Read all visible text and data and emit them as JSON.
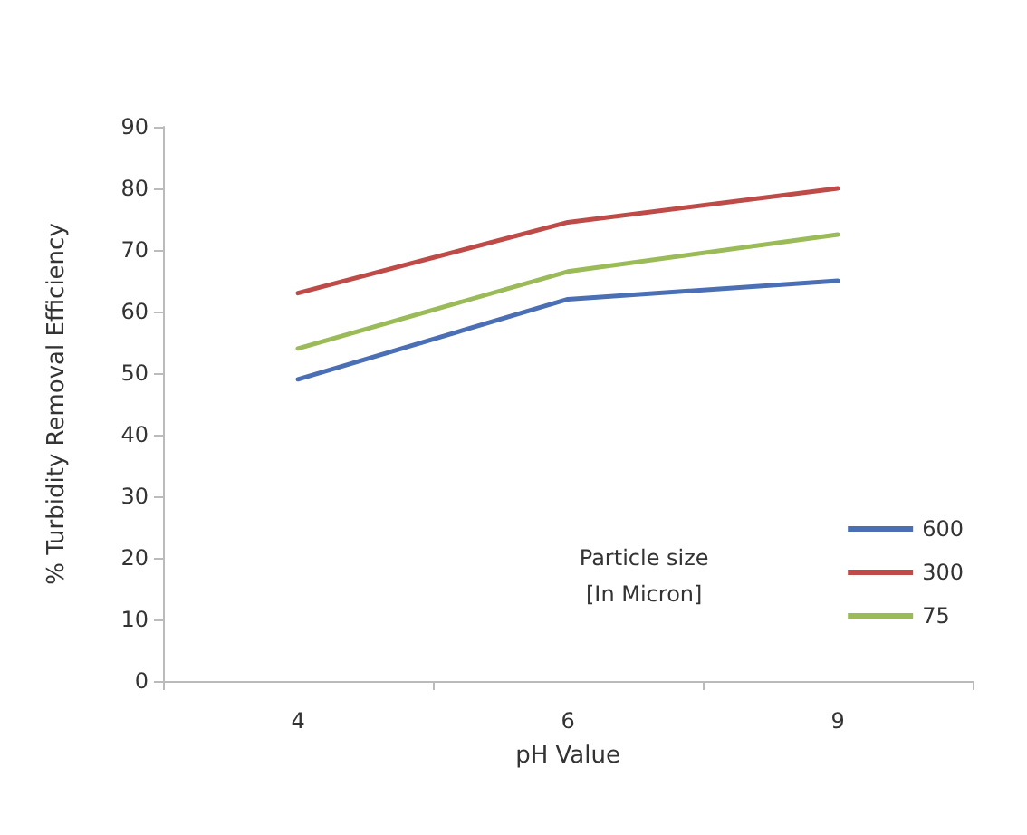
{
  "chart_data": {
    "type": "line",
    "xlabel": "pH Value",
    "ylabel": "% Turbidity Removal Efficiency",
    "legend_title": "Particle size\n[In Micron]",
    "categories": [
      "4",
      "6",
      "9"
    ],
    "series": [
      {
        "name": "600",
        "color": "#4a6fb5",
        "values": [
          49,
          62,
          65
        ]
      },
      {
        "name": "300",
        "color": "#be4b48",
        "values": [
          63,
          74.5,
          80
        ]
      },
      {
        "name": "75",
        "color": "#9bbb59",
        "values": [
          54,
          66.5,
          72.5
        ]
      }
    ],
    "ylim": [
      0,
      90
    ],
    "yticks": [
      0,
      10,
      20,
      30,
      40,
      50,
      60,
      70,
      80,
      90
    ],
    "grid": false,
    "legend": "bottom right",
    "marker": "none",
    "line_style": "solid"
  }
}
